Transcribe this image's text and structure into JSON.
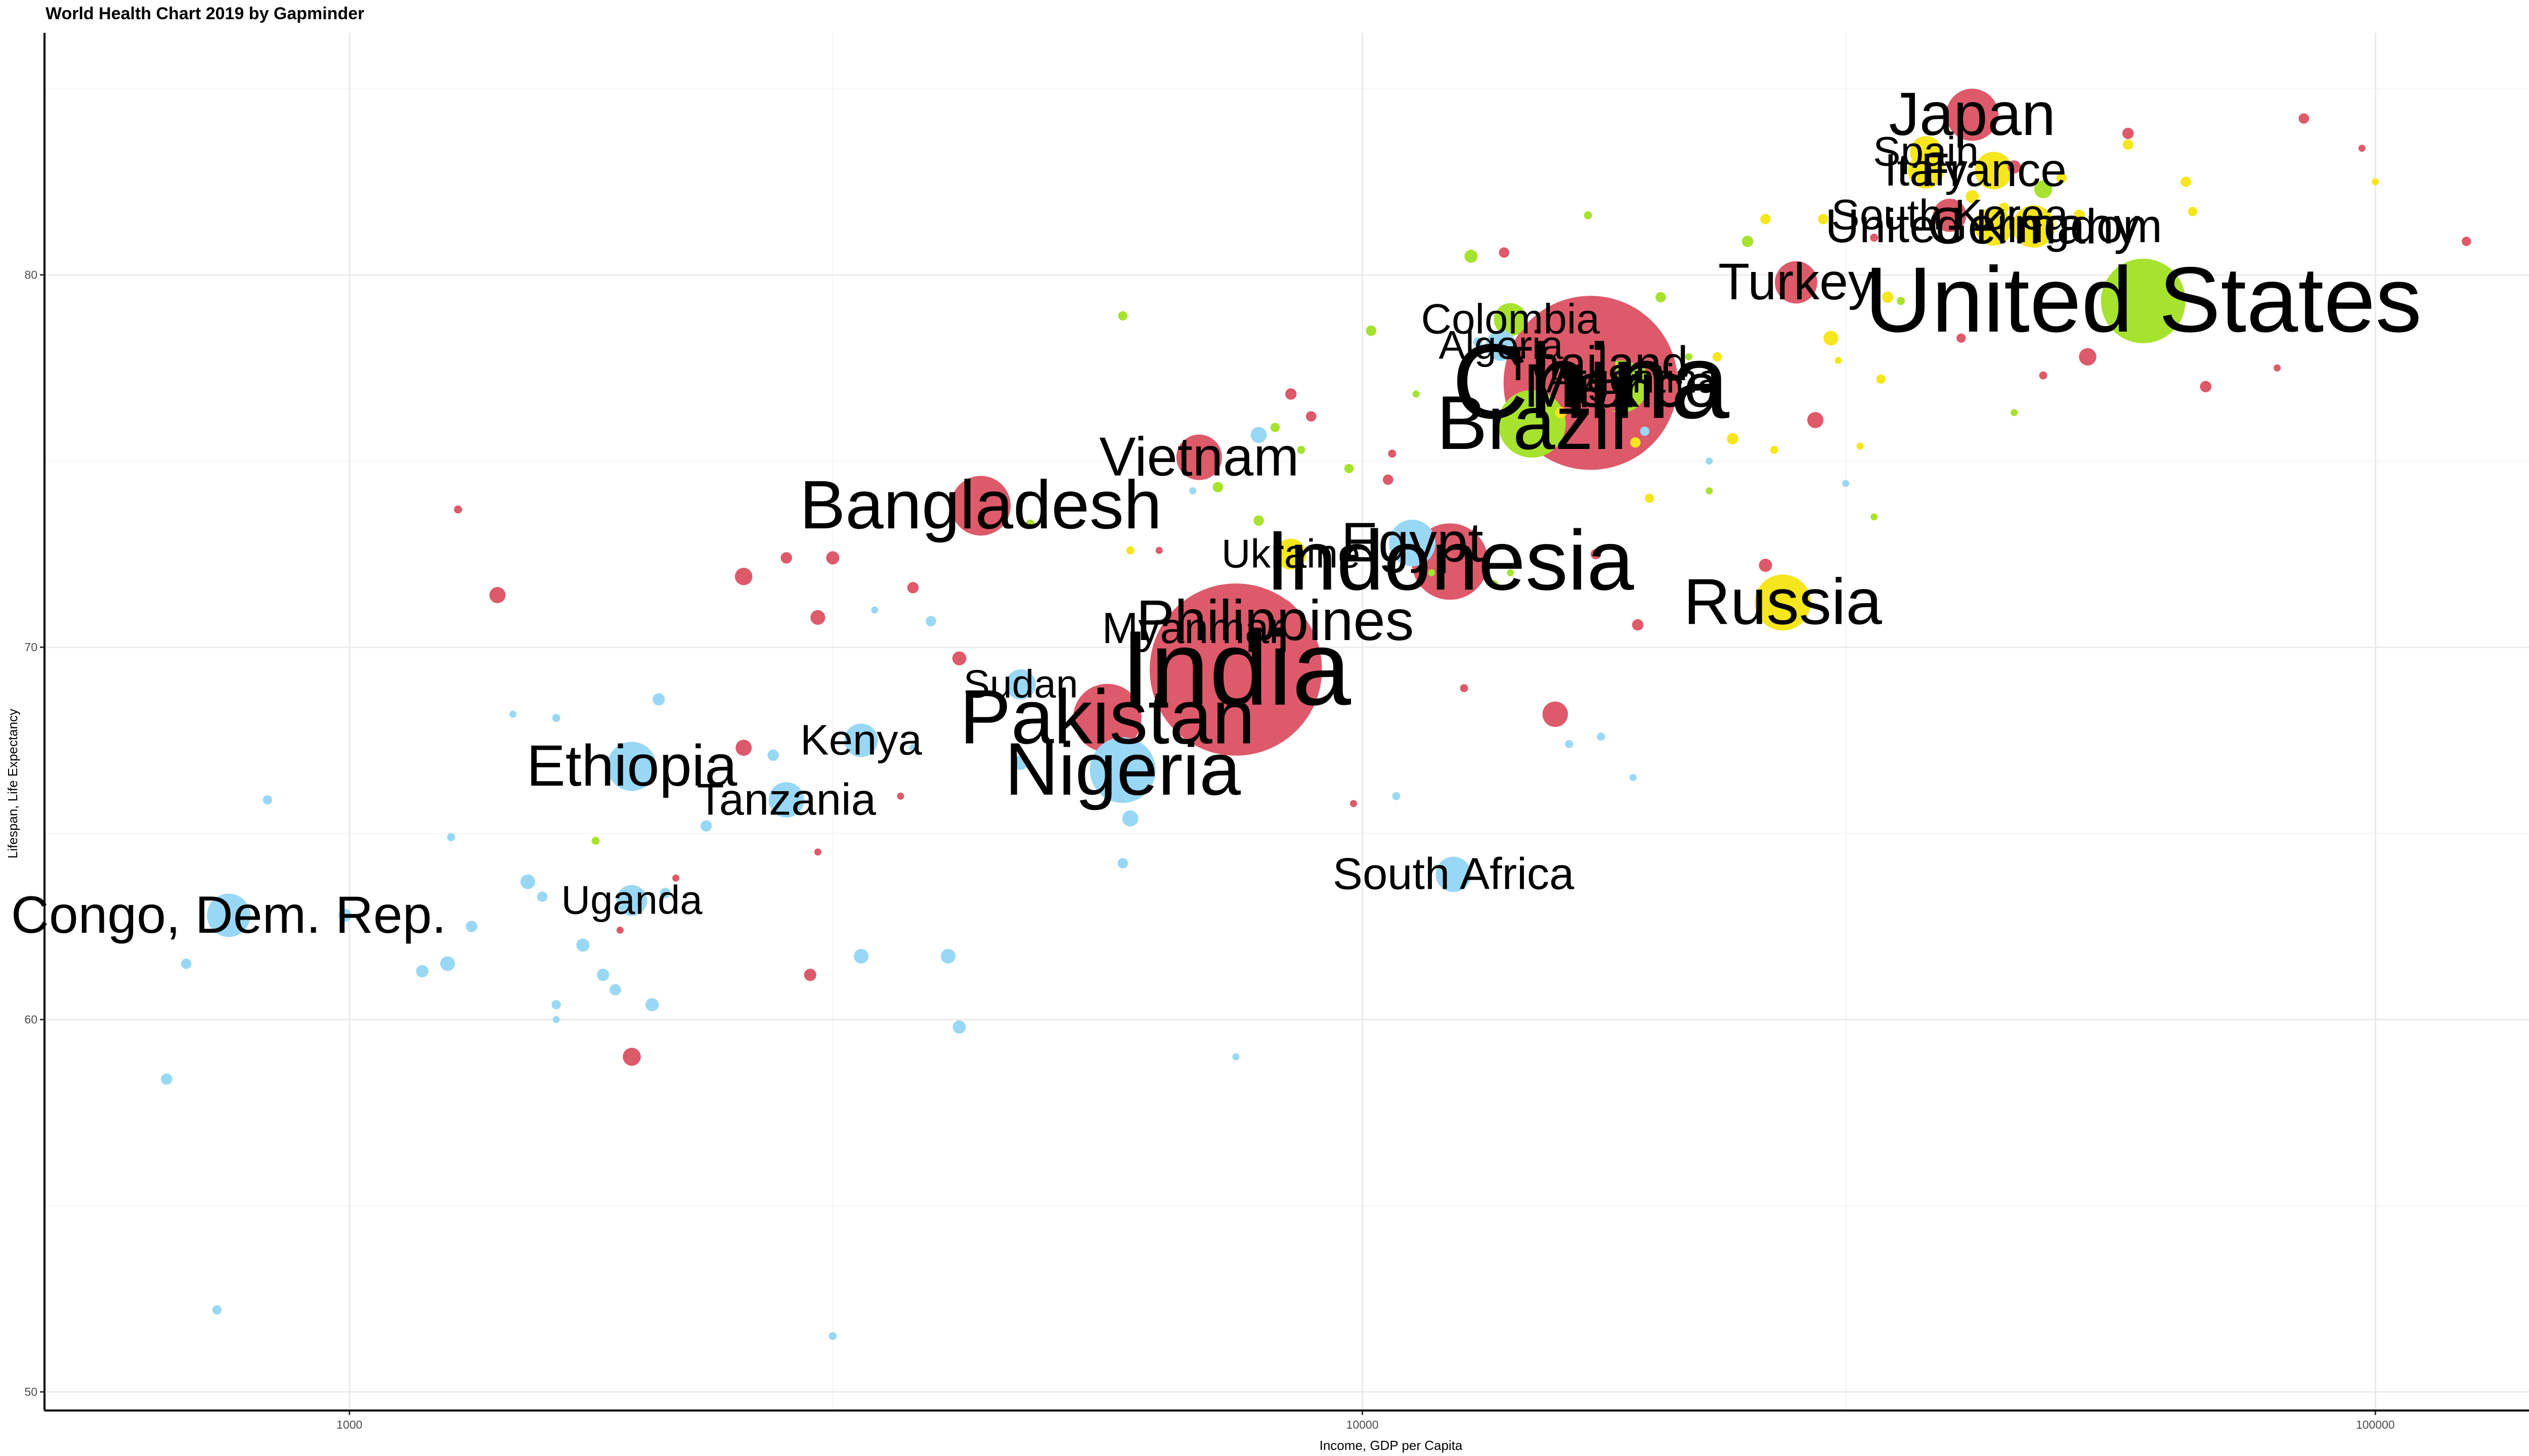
{
  "chart_data": {
    "type": "scatter",
    "title": "World Health Chart 2019 by Gapminder",
    "xlabel": "Income, GDP per Capita",
    "ylabel": "Lifespan, Life Expectancy",
    "x_scale": "log",
    "xlim": [
      500,
      160000
    ],
    "ylim": [
      49.5,
      86.5
    ],
    "x_ticks": [
      1000,
      10000,
      100000
    ],
    "x_tick_labels": [
      "1000",
      "10000",
      "100000"
    ],
    "y_ticks": [
      50,
      60,
      70,
      80
    ],
    "y_tick_labels": [
      "50",
      "60",
      "70",
      "80"
    ],
    "grid": true,
    "legend": "none",
    "colors": {
      "africa": "#99d8f5",
      "asia": "#dc5a6a",
      "europe": "#f5e61e",
      "americas": "#a6e22e"
    },
    "labeled_points": [
      {
        "country": "India",
        "x": 7500,
        "y": 69.4,
        "pop": 1370,
        "region": "asia"
      },
      {
        "country": "China",
        "x": 16800,
        "y": 77.1,
        "pop": 1400,
        "region": "asia"
      },
      {
        "country": "United States",
        "x": 59000,
        "y": 79.3,
        "pop": 330,
        "region": "americas"
      },
      {
        "country": "Indonesia",
        "x": 12200,
        "y": 72.3,
        "pop": 270,
        "region": "asia"
      },
      {
        "country": "Pakistan",
        "x": 5600,
        "y": 68.1,
        "pop": 216,
        "region": "asia"
      },
      {
        "country": "Brazil",
        "x": 14700,
        "y": 76.0,
        "pop": 211,
        "region": "americas"
      },
      {
        "country": "Nigeria",
        "x": 5800,
        "y": 66.7,
        "pop": 200,
        "region": "africa"
      },
      {
        "country": "Bangladesh",
        "x": 4200,
        "y": 73.8,
        "pop": 165,
        "region": "asia"
      },
      {
        "country": "Russia",
        "x": 26000,
        "y": 71.2,
        "pop": 145,
        "region": "europe"
      },
      {
        "country": "Mexico",
        "x": 18000,
        "y": 77.0,
        "pop": 127,
        "region": "americas"
      },
      {
        "country": "Japan",
        "x": 40000,
        "y": 84.3,
        "pop": 126,
        "region": "asia"
      },
      {
        "country": "Ethiopia",
        "x": 1900,
        "y": 66.8,
        "pop": 112,
        "region": "africa"
      },
      {
        "country": "Philippines",
        "x": 8200,
        "y": 70.7,
        "pop": 108,
        "region": "asia"
      },
      {
        "country": "Egypt",
        "x": 11200,
        "y": 72.8,
        "pop": 100,
        "region": "africa"
      },
      {
        "country": "Vietnam",
        "x": 6900,
        "y": 75.1,
        "pop": 96,
        "region": "asia"
      },
      {
        "country": "Congo, Dem. Rep.",
        "x": 760,
        "y": 62.8,
        "pop": 87,
        "region": "africa"
      },
      {
        "country": "Turkey",
        "x": 26800,
        "y": 79.8,
        "pop": 83,
        "region": "asia"
      },
      {
        "country": "Iran",
        "x": 17500,
        "y": 76.9,
        "pop": 83,
        "region": "asia"
      },
      {
        "country": "Germany",
        "x": 46000,
        "y": 81.3,
        "pop": 83,
        "region": "europe"
      },
      {
        "country": "Thailand",
        "x": 17000,
        "y": 77.6,
        "pop": 70,
        "region": "asia"
      },
      {
        "country": "United Kingdom",
        "x": 42000,
        "y": 81.3,
        "pop": 67,
        "region": "europe"
      },
      {
        "country": "France",
        "x": 42000,
        "y": 82.8,
        "pop": 65,
        "region": "europe"
      },
      {
        "country": "Italy",
        "x": 36000,
        "y": 82.8,
        "pop": 60,
        "region": "europe"
      },
      {
        "country": "Tanzania",
        "x": 2700,
        "y": 65.9,
        "pop": 58,
        "region": "africa"
      },
      {
        "country": "South Africa",
        "x": 12300,
        "y": 63.9,
        "pop": 58,
        "region": "africa"
      },
      {
        "country": "Myanmar",
        "x": 6800,
        "y": 70.5,
        "pop": 54,
        "region": "asia"
      },
      {
        "country": "Kenya",
        "x": 3200,
        "y": 67.5,
        "pop": 52,
        "region": "africa"
      },
      {
        "country": "South Korea",
        "x": 38000,
        "y": 81.6,
        "pop": 51,
        "region": "asia"
      },
      {
        "country": "Colombia",
        "x": 14000,
        "y": 78.8,
        "pop": 50,
        "region": "americas"
      },
      {
        "country": "Spain",
        "x": 36000,
        "y": 83.3,
        "pop": 47,
        "region": "europe"
      },
      {
        "country": "Argentina",
        "x": 18500,
        "y": 77.2,
        "pop": 45,
        "region": "americas"
      },
      {
        "country": "Uganda",
        "x": 1900,
        "y": 63.2,
        "pop": 44,
        "region": "africa"
      },
      {
        "country": "Ukraine",
        "x": 8500,
        "y": 72.5,
        "pop": 44,
        "region": "europe"
      },
      {
        "country": "Algeria",
        "x": 13700,
        "y": 78.1,
        "pop": 43,
        "region": "africa"
      },
      {
        "country": "Sudan",
        "x": 4600,
        "y": 69.0,
        "pop": 42,
        "region": "africa"
      }
    ],
    "unlabeled_points": [
      {
        "x": 660,
        "y": 58.4,
        "pop": 6,
        "region": "africa"
      },
      {
        "x": 740,
        "y": 52.2,
        "pop": 4,
        "region": "africa"
      },
      {
        "x": 690,
        "y": 61.5,
        "pop": 5,
        "region": "africa"
      },
      {
        "x": 830,
        "y": 65.9,
        "pop": 4,
        "region": "africa"
      },
      {
        "x": 990,
        "y": 62.8,
        "pop": 8,
        "region": "africa"
      },
      {
        "x": 1180,
        "y": 61.3,
        "pop": 7,
        "region": "africa"
      },
      {
        "x": 1250,
        "y": 61.5,
        "pop": 10,
        "region": "africa"
      },
      {
        "x": 1260,
        "y": 64.9,
        "pop": 3,
        "region": "africa"
      },
      {
        "x": 1320,
        "y": 62.5,
        "pop": 6,
        "region": "africa"
      },
      {
        "x": 1450,
        "y": 68.2,
        "pop": 2,
        "region": "africa"
      },
      {
        "x": 1500,
        "y": 63.7,
        "pop": 10,
        "region": "africa"
      },
      {
        "x": 1550,
        "y": 63.3,
        "pop": 5,
        "region": "africa"
      },
      {
        "x": 1600,
        "y": 68.1,
        "pop": 3,
        "region": "africa"
      },
      {
        "x": 1600,
        "y": 60.4,
        "pop": 4,
        "region": "africa"
      },
      {
        "x": 1600,
        "y": 60.0,
        "pop": 2,
        "region": "africa"
      },
      {
        "x": 1700,
        "y": 62.0,
        "pop": 8,
        "region": "africa"
      },
      {
        "x": 1780,
        "y": 61.2,
        "pop": 7,
        "region": "africa"
      },
      {
        "x": 1830,
        "y": 60.8,
        "pop": 6,
        "region": "africa"
      },
      {
        "x": 1990,
        "y": 60.4,
        "pop": 8,
        "region": "africa"
      },
      {
        "x": 2020,
        "y": 68.6,
        "pop": 7,
        "region": "africa"
      },
      {
        "x": 2050,
        "y": 63.4,
        "pop": 5,
        "region": "africa"
      },
      {
        "x": 2250,
        "y": 65.2,
        "pop": 6,
        "region": "africa"
      },
      {
        "x": 2620,
        "y": 67.1,
        "pop": 6,
        "region": "africa"
      },
      {
        "x": 3000,
        "y": 51.5,
        "pop": 3,
        "region": "africa"
      },
      {
        "x": 3200,
        "y": 61.7,
        "pop": 10,
        "region": "africa"
      },
      {
        "x": 3300,
        "y": 71.0,
        "pop": 1,
        "region": "africa"
      },
      {
        "x": 3600,
        "y": 67.3,
        "pop": 1,
        "region": "africa"
      },
      {
        "x": 3750,
        "y": 70.7,
        "pop": 5,
        "region": "africa"
      },
      {
        "x": 3900,
        "y": 61.7,
        "pop": 10,
        "region": "africa"
      },
      {
        "x": 4000,
        "y": 59.8,
        "pop": 8,
        "region": "africa"
      },
      {
        "x": 4600,
        "y": 66.9,
        "pop": 10,
        "region": "africa"
      },
      {
        "x": 5800,
        "y": 64.2,
        "pop": 5,
        "region": "africa"
      },
      {
        "x": 5900,
        "y": 65.4,
        "pop": 12,
        "region": "africa"
      },
      {
        "x": 6800,
        "y": 74.2,
        "pop": 2,
        "region": "africa"
      },
      {
        "x": 7500,
        "y": 59.0,
        "pop": 2,
        "region": "africa"
      },
      {
        "x": 7900,
        "y": 75.7,
        "pop": 12,
        "region": "africa"
      },
      {
        "x": 10800,
        "y": 66.0,
        "pop": 3,
        "region": "africa"
      },
      {
        "x": 13000,
        "y": 78.2,
        "pop": 4,
        "region": "africa"
      },
      {
        "x": 16000,
        "y": 67.4,
        "pop": 3,
        "region": "africa"
      },
      {
        "x": 17200,
        "y": 67.6,
        "pop": 3,
        "region": "africa"
      },
      {
        "x": 18500,
        "y": 66.5,
        "pop": 2,
        "region": "africa"
      },
      {
        "x": 19000,
        "y": 75.8,
        "pop": 4,
        "region": "africa"
      },
      {
        "x": 22000,
        "y": 75.0,
        "pop": 2,
        "region": "africa"
      },
      {
        "x": 30000,
        "y": 74.4,
        "pop": 1,
        "region": "africa"
      },
      {
        "x": 1280,
        "y": 73.7,
        "pop": 3,
        "region": "asia"
      },
      {
        "x": 1400,
        "y": 71.4,
        "pop": 12,
        "region": "asia"
      },
      {
        "x": 1900,
        "y": 59.0,
        "pop": 15,
        "region": "asia"
      },
      {
        "x": 1850,
        "y": 62.4,
        "pop": 1,
        "region": "asia"
      },
      {
        "x": 2100,
        "y": 63.8,
        "pop": 2,
        "region": "asia"
      },
      {
        "x": 2450,
        "y": 67.3,
        "pop": 12,
        "region": "asia"
      },
      {
        "x": 2450,
        "y": 71.9,
        "pop": 14,
        "region": "asia"
      },
      {
        "x": 2700,
        "y": 72.4,
        "pop": 6,
        "region": "asia"
      },
      {
        "x": 2850,
        "y": 61.2,
        "pop": 7,
        "region": "asia"
      },
      {
        "x": 2900,
        "y": 64.5,
        "pop": 1,
        "region": "asia"
      },
      {
        "x": 2900,
        "y": 70.8,
        "pop": 10,
        "region": "asia"
      },
      {
        "x": 3000,
        "y": 72.4,
        "pop": 8,
        "region": "asia"
      },
      {
        "x": 3500,
        "y": 66.0,
        "pop": 1,
        "region": "asia"
      },
      {
        "x": 3600,
        "y": 71.6,
        "pop": 6,
        "region": "asia"
      },
      {
        "x": 4000,
        "y": 69.7,
        "pop": 9,
        "region": "asia"
      },
      {
        "x": 6300,
        "y": 72.6,
        "pop": 1,
        "region": "asia"
      },
      {
        "x": 6800,
        "y": 68.3,
        "pop": 5,
        "region": "asia"
      },
      {
        "x": 8500,
        "y": 76.8,
        "pop": 6,
        "region": "asia"
      },
      {
        "x": 8900,
        "y": 76.2,
        "pop": 5,
        "region": "asia"
      },
      {
        "x": 9800,
        "y": 65.8,
        "pop": 2,
        "region": "asia"
      },
      {
        "x": 10600,
        "y": 74.5,
        "pop": 5,
        "region": "asia"
      },
      {
        "x": 10700,
        "y": 75.2,
        "pop": 3,
        "region": "asia"
      },
      {
        "x": 12600,
        "y": 68.9,
        "pop": 3,
        "region": "asia"
      },
      {
        "x": 13800,
        "y": 80.6,
        "pop": 5,
        "region": "asia"
      },
      {
        "x": 15500,
        "y": 68.2,
        "pop": 30,
        "region": "asia"
      },
      {
        "x": 17000,
        "y": 72.5,
        "pop": 5,
        "region": "asia"
      },
      {
        "x": 18700,
        "y": 70.6,
        "pop": 6,
        "region": "asia"
      },
      {
        "x": 25000,
        "y": 72.2,
        "pop": 8,
        "region": "asia"
      },
      {
        "x": 28000,
        "y": 76.1,
        "pop": 12,
        "region": "asia"
      },
      {
        "x": 32000,
        "y": 81.0,
        "pop": 3,
        "region": "asia"
      },
      {
        "x": 39000,
        "y": 78.3,
        "pop": 4,
        "region": "asia"
      },
      {
        "x": 44000,
        "y": 82.9,
        "pop": 8,
        "region": "asia"
      },
      {
        "x": 47000,
        "y": 77.3,
        "pop": 3,
        "region": "asia"
      },
      {
        "x": 52000,
        "y": 77.8,
        "pop": 14,
        "region": "asia"
      },
      {
        "x": 57000,
        "y": 83.8,
        "pop": 6,
        "region": "asia"
      },
      {
        "x": 68000,
        "y": 77.0,
        "pop": 6,
        "region": "asia"
      },
      {
        "x": 80000,
        "y": 77.5,
        "pop": 2,
        "region": "asia"
      },
      {
        "x": 85000,
        "y": 84.2,
        "pop": 5,
        "region": "asia"
      },
      {
        "x": 97000,
        "y": 83.4,
        "pop": 2,
        "region": "asia"
      },
      {
        "x": 123000,
        "y": 80.9,
        "pop": 4,
        "region": "asia"
      },
      {
        "x": 5900,
        "y": 72.6,
        "pop": 3,
        "region": "europe"
      },
      {
        "x": 8500,
        "y": 72.5,
        "pop": 44,
        "region": "europe"
      },
      {
        "x": 15700,
        "y": 76.3,
        "pop": 6,
        "region": "europe"
      },
      {
        "x": 18600,
        "y": 75.5,
        "pop": 5,
        "region": "europe"
      },
      {
        "x": 19200,
        "y": 74.0,
        "pop": 4,
        "region": "europe"
      },
      {
        "x": 22400,
        "y": 77.8,
        "pop": 4,
        "region": "europe"
      },
      {
        "x": 23200,
        "y": 75.6,
        "pop": 6,
        "region": "europe"
      },
      {
        "x": 25000,
        "y": 81.5,
        "pop": 5,
        "region": "europe"
      },
      {
        "x": 25500,
        "y": 75.3,
        "pop": 3,
        "region": "europe"
      },
      {
        "x": 28500,
        "y": 81.5,
        "pop": 5,
        "region": "europe"
      },
      {
        "x": 29000,
        "y": 78.3,
        "pop": 10,
        "region": "europe"
      },
      {
        "x": 29500,
        "y": 77.7,
        "pop": 2,
        "region": "europe"
      },
      {
        "x": 31000,
        "y": 75.4,
        "pop": 2,
        "region": "europe"
      },
      {
        "x": 32500,
        "y": 77.2,
        "pop": 4,
        "region": "europe"
      },
      {
        "x": 33000,
        "y": 79.4,
        "pop": 6,
        "region": "europe"
      },
      {
        "x": 40000,
        "y": 82.1,
        "pop": 8,
        "region": "europe"
      },
      {
        "x": 43000,
        "y": 81.8,
        "pop": 5,
        "region": "europe"
      },
      {
        "x": 49000,
        "y": 82.6,
        "pop": 5,
        "region": "europe"
      },
      {
        "x": 51000,
        "y": 81.6,
        "pop": 6,
        "region": "europe"
      },
      {
        "x": 57000,
        "y": 83.5,
        "pop": 5,
        "region": "europe"
      },
      {
        "x": 65000,
        "y": 82.5,
        "pop": 5,
        "region": "europe"
      },
      {
        "x": 66000,
        "y": 81.7,
        "pop": 4,
        "region": "europe"
      },
      {
        "x": 100000,
        "y": 82.5,
        "pop": 1,
        "region": "europe"
      },
      {
        "x": 1750,
        "y": 64.8,
        "pop": 3,
        "region": "americas"
      },
      {
        "x": 4700,
        "y": 73.3,
        "pop": 4,
        "region": "americas"
      },
      {
        "x": 5800,
        "y": 78.9,
        "pop": 4,
        "region": "americas"
      },
      {
        "x": 7200,
        "y": 74.3,
        "pop": 5,
        "region": "americas"
      },
      {
        "x": 7900,
        "y": 73.4,
        "pop": 5,
        "region": "americas"
      },
      {
        "x": 8200,
        "y": 75.9,
        "pop": 4,
        "region": "americas"
      },
      {
        "x": 8700,
        "y": 75.3,
        "pop": 3,
        "region": "americas"
      },
      {
        "x": 9700,
        "y": 74.8,
        "pop": 4,
        "region": "americas"
      },
      {
        "x": 10200,
        "y": 78.5,
        "pop": 5,
        "region": "americas"
      },
      {
        "x": 11300,
        "y": 76.8,
        "pop": 1,
        "region": "americas"
      },
      {
        "x": 11700,
        "y": 72.0,
        "pop": 2,
        "region": "americas"
      },
      {
        "x": 12800,
        "y": 80.5,
        "pop": 8,
        "region": "americas"
      },
      {
        "x": 13500,
        "y": 71.7,
        "pop": 1,
        "region": "americas"
      },
      {
        "x": 14000,
        "y": 72.0,
        "pop": 1,
        "region": "americas"
      },
      {
        "x": 16700,
        "y": 81.6,
        "pop": 3,
        "region": "americas"
      },
      {
        "x": 19700,
        "y": 79.4,
        "pop": 5,
        "region": "americas"
      },
      {
        "x": 21000,
        "y": 77.8,
        "pop": 2,
        "region": "americas"
      },
      {
        "x": 22000,
        "y": 74.2,
        "pop": 2,
        "region": "americas"
      },
      {
        "x": 24000,
        "y": 80.9,
        "pop": 6,
        "region": "americas"
      },
      {
        "x": 32000,
        "y": 73.5,
        "pop": 2,
        "region": "americas"
      },
      {
        "x": 34000,
        "y": 79.3,
        "pop": 3,
        "region": "americas"
      },
      {
        "x": 44000,
        "y": 76.3,
        "pop": 2,
        "region": "americas"
      },
      {
        "x": 47000,
        "y": 82.3,
        "pop": 15,
        "region": "americas"
      }
    ]
  }
}
